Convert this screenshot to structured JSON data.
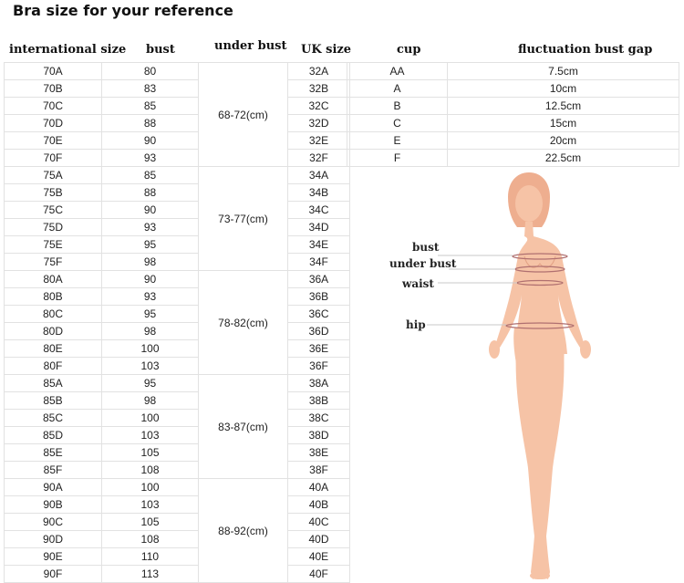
{
  "title": "Bra size for your reference",
  "headers": {
    "international_size": "international size",
    "bust": "bust",
    "under_bust": "under bust",
    "uk_size": "UK  size",
    "cup": "cup",
    "fluctuation": "fluctuation  bust gap"
  },
  "rows": [
    {
      "intl": "70A",
      "bust": "80",
      "uk": "32A"
    },
    {
      "intl": "70B",
      "bust": "83",
      "uk": "32B"
    },
    {
      "intl": "70C",
      "bust": "85",
      "uk": "32C"
    },
    {
      "intl": "70D",
      "bust": "88",
      "uk": "32D"
    },
    {
      "intl": "70E",
      "bust": "90",
      "uk": "32E"
    },
    {
      "intl": "70F",
      "bust": "93",
      "uk": "32F"
    },
    {
      "intl": "75A",
      "bust": "85",
      "uk": "34A"
    },
    {
      "intl": "75B",
      "bust": "88",
      "uk": "34B"
    },
    {
      "intl": "75C",
      "bust": "90",
      "uk": "34C"
    },
    {
      "intl": "75D",
      "bust": "93",
      "uk": "34D"
    },
    {
      "intl": "75E",
      "bust": "95",
      "uk": "34E"
    },
    {
      "intl": "75F",
      "bust": "98",
      "uk": "34F"
    },
    {
      "intl": "80A",
      "bust": "90",
      "uk": "36A"
    },
    {
      "intl": "80B",
      "bust": "93",
      "uk": "36B"
    },
    {
      "intl": "80C",
      "bust": "95",
      "uk": "36C"
    },
    {
      "intl": "80D",
      "bust": "98",
      "uk": "36D"
    },
    {
      "intl": "80E",
      "bust": "100",
      "uk": "36E"
    },
    {
      "intl": "80F",
      "bust": "103",
      "uk": "36F"
    },
    {
      "intl": "85A",
      "bust": "95",
      "uk": "38A"
    },
    {
      "intl": "85B",
      "bust": "98",
      "uk": "38B"
    },
    {
      "intl": "85C",
      "bust": "100",
      "uk": "38C"
    },
    {
      "intl": "85D",
      "bust": "103",
      "uk": "38D"
    },
    {
      "intl": "85E",
      "bust": "105",
      "uk": "38E"
    },
    {
      "intl": "85F",
      "bust": "108",
      "uk": "38F"
    },
    {
      "intl": "90A",
      "bust": "100",
      "uk": "40A"
    },
    {
      "intl": "90B",
      "bust": "103",
      "uk": "40B"
    },
    {
      "intl": "90C",
      "bust": "105",
      "uk": "40C"
    },
    {
      "intl": "90D",
      "bust": "108",
      "uk": "40D"
    },
    {
      "intl": "90E",
      "bust": "110",
      "uk": "40E"
    },
    {
      "intl": "90F",
      "bust": "113",
      "uk": "40F"
    }
  ],
  "under_bust_groups": [
    "68-72(cm)",
    "73-77(cm)",
    "78-82(cm)",
    "83-87(cm)",
    "88-92(cm)"
  ],
  "cups": [
    {
      "cup": "AA",
      "gap": "7.5cm"
    },
    {
      "cup": "A",
      "gap": "10cm"
    },
    {
      "cup": "B",
      "gap": "12.5cm"
    },
    {
      "cup": "C",
      "gap": "15cm"
    },
    {
      "cup": "E",
      "gap": "20cm"
    },
    {
      "cup": "F",
      "gap": "22.5cm"
    }
  ],
  "body_labels": {
    "bust": "bust",
    "under_bust": "under bust",
    "waist": "waist",
    "hip": "hip"
  },
  "colors": {
    "skin": "#f6c3a6",
    "skin_shade": "#eeae8f",
    "grid": "#e2e2e2",
    "measure_line": "#b07070"
  }
}
